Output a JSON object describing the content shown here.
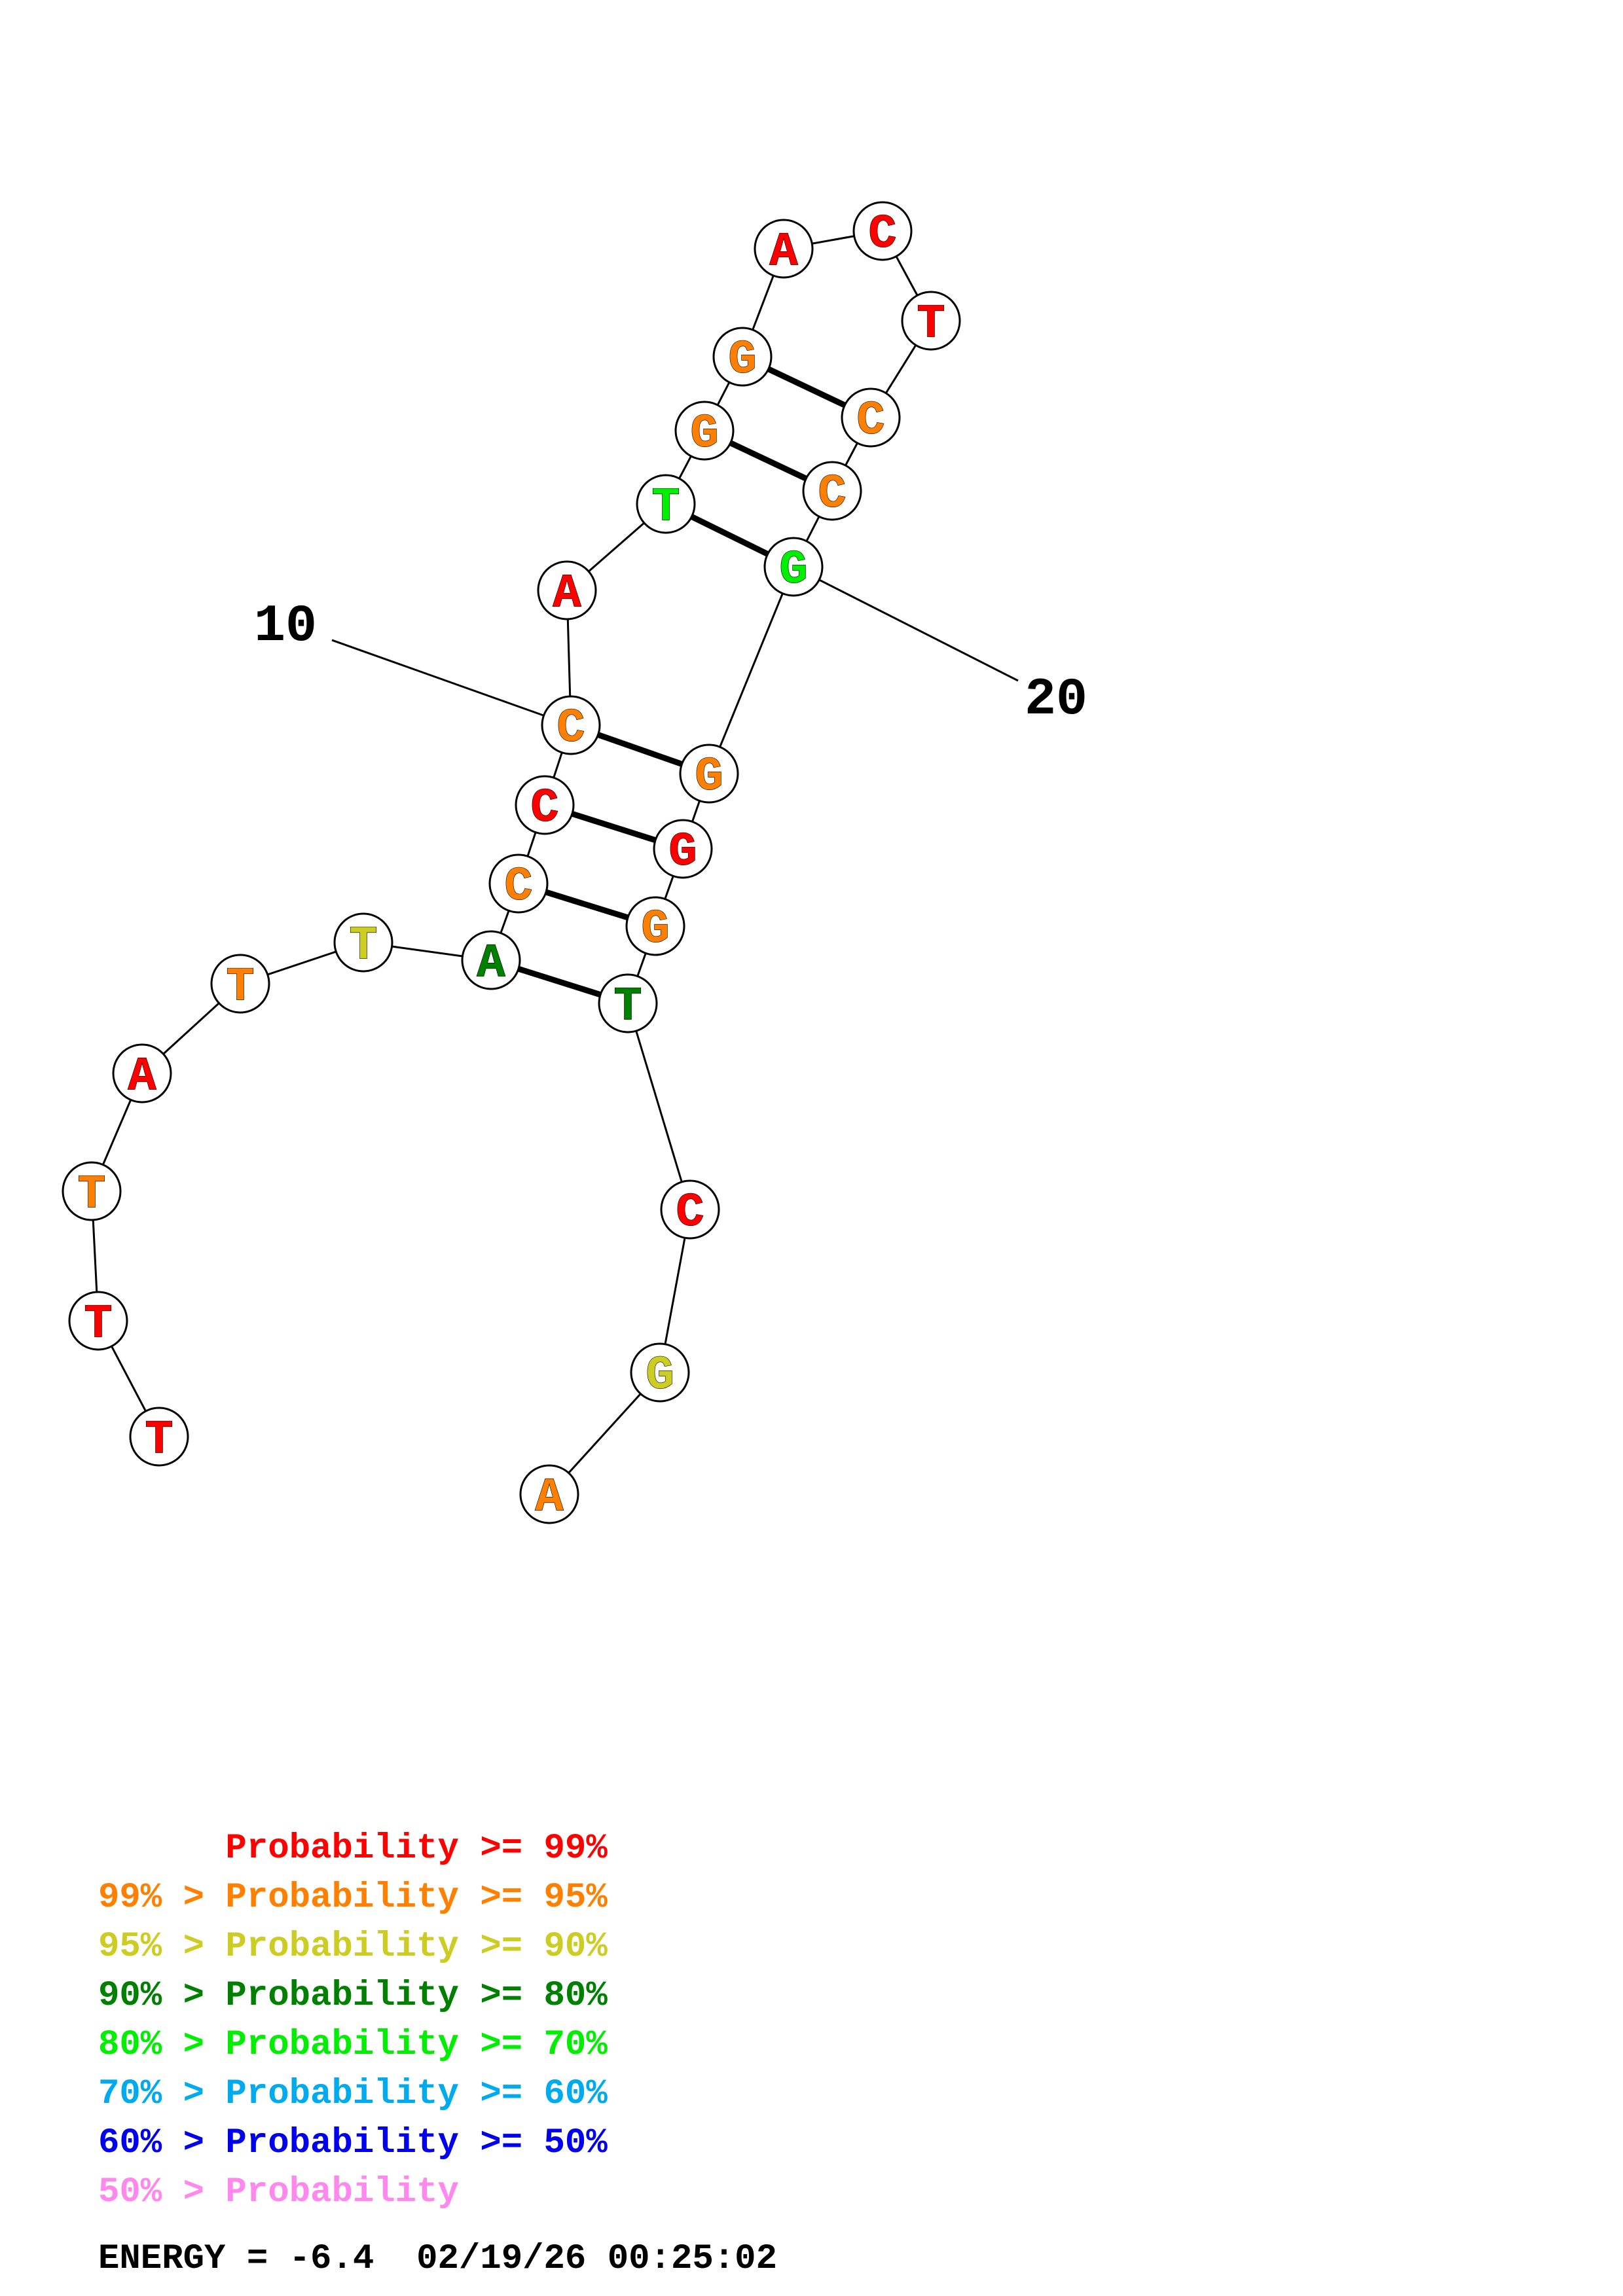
{
  "colors": {
    "p99": "#ff0000",
    "p95": "#ff8000",
    "p90": "#cccc22",
    "p80": "#008000",
    "p70": "#00ee00",
    "p60": "#00aaee",
    "p50": "#0000ee",
    "plow": "#ff88ee",
    "ink": "#000000"
  },
  "sequence": [
    {
      "base": "T",
      "color": "#ff0000"
    },
    {
      "base": "T",
      "color": "#ff0000"
    },
    {
      "base": "T",
      "color": "#ff8000"
    },
    {
      "base": "A",
      "color": "#ff0000"
    },
    {
      "base": "T",
      "color": "#ff8000"
    },
    {
      "base": "T",
      "color": "#cccc22"
    },
    {
      "base": "A",
      "color": "#008000"
    },
    {
      "base": "C",
      "color": "#ff8000"
    },
    {
      "base": "C",
      "color": "#ff0000"
    },
    {
      "base": "C",
      "color": "#ff8000"
    },
    {
      "base": "A",
      "color": "#ff0000"
    },
    {
      "base": "T",
      "color": "#00ee00"
    },
    {
      "base": "G",
      "color": "#ff8000"
    },
    {
      "base": "G",
      "color": "#ff8000"
    },
    {
      "base": "A",
      "color": "#ff0000"
    },
    {
      "base": "C",
      "color": "#ff0000"
    },
    {
      "base": "T",
      "color": "#ff0000"
    },
    {
      "base": "C",
      "color": "#ff8000"
    },
    {
      "base": "C",
      "color": "#ff8000"
    },
    {
      "base": "G",
      "color": "#00ee00"
    },
    {
      "base": "G",
      "color": "#ff8000"
    },
    {
      "base": "G",
      "color": "#ff0000"
    },
    {
      "base": "G",
      "color": "#ff8000"
    },
    {
      "base": "T",
      "color": "#008000"
    },
    {
      "base": "C",
      "color": "#ff0000"
    },
    {
      "base": "G",
      "color": "#cccc22"
    },
    {
      "base": "A",
      "color": "#ff8000"
    }
  ],
  "pairs": [
    [
      7,
      24
    ],
    [
      8,
      23
    ],
    [
      9,
      22
    ],
    [
      10,
      21
    ],
    [
      12,
      20
    ],
    [
      13,
      19
    ],
    [
      14,
      18
    ]
  ],
  "ticks": [
    {
      "label": "10",
      "index": 10
    },
    {
      "label": "20",
      "index": 20
    }
  ],
  "legend": [
    {
      "text": "      Probability >= 99%",
      "color": "#ff0000"
    },
    {
      "text": "99% > Probability >= 95%",
      "color": "#ff8000"
    },
    {
      "text": "95% > Probability >= 90%",
      "color": "#cccc22"
    },
    {
      "text": "90% > Probability >= 80%",
      "color": "#008000"
    },
    {
      "text": "80% > Probability >= 70%",
      "color": "#00ee00"
    },
    {
      "text": "70% > Probability >= 60%",
      "color": "#00aaee"
    },
    {
      "text": "60% > Probability >= 50%",
      "color": "#0000ee"
    },
    {
      "text": "50% > Probability",
      "color": "#ff88ee"
    }
  ],
  "energy_line": "ENERGY = -6.4  02/19/26 00:25:02"
}
